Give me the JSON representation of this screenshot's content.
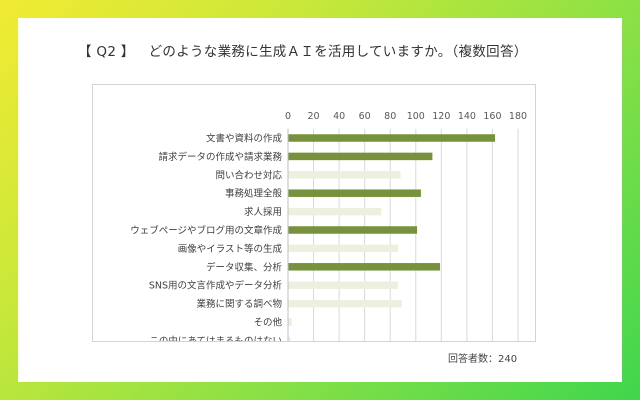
{
  "question": {
    "number": "【 Q2 】",
    "text": "どのような業務に生成ＡＩを活用していますか。（複数回答）"
  },
  "respondents": "回答者数：240",
  "colors": {
    "highlight": "#76923c",
    "normal": "#ebf1de",
    "grid": "#d9d9d9"
  },
  "chart_data": {
    "type": "bar",
    "orientation": "horizontal",
    "title": "",
    "xlabel": "",
    "ylabel": "",
    "xlim": [
      0,
      180
    ],
    "ticks": [
      "0",
      "20",
      "40",
      "60",
      "80",
      "100",
      "120",
      "140",
      "160",
      "180"
    ],
    "grid": true,
    "legend": "none",
    "categories": [
      "文書や資料の作成",
      "請求データの作成や請求業務",
      "問い合わせ対応",
      "事務処理全般",
      "求人採用",
      "ウェブページやブログ用の文章作成",
      "画像やイラスト等の生成",
      "データ収集、分析",
      "SNS用の文言作成やデータ分析",
      "業務に関する調べ物",
      "その他",
      "この中にあてはまるものはない"
    ],
    "values": [
      162,
      113,
      88,
      104,
      73,
      101,
      86,
      119,
      86,
      89,
      3,
      2
    ],
    "highlighted": [
      true,
      true,
      false,
      true,
      false,
      true,
      false,
      true,
      false,
      false,
      false,
      false
    ]
  }
}
